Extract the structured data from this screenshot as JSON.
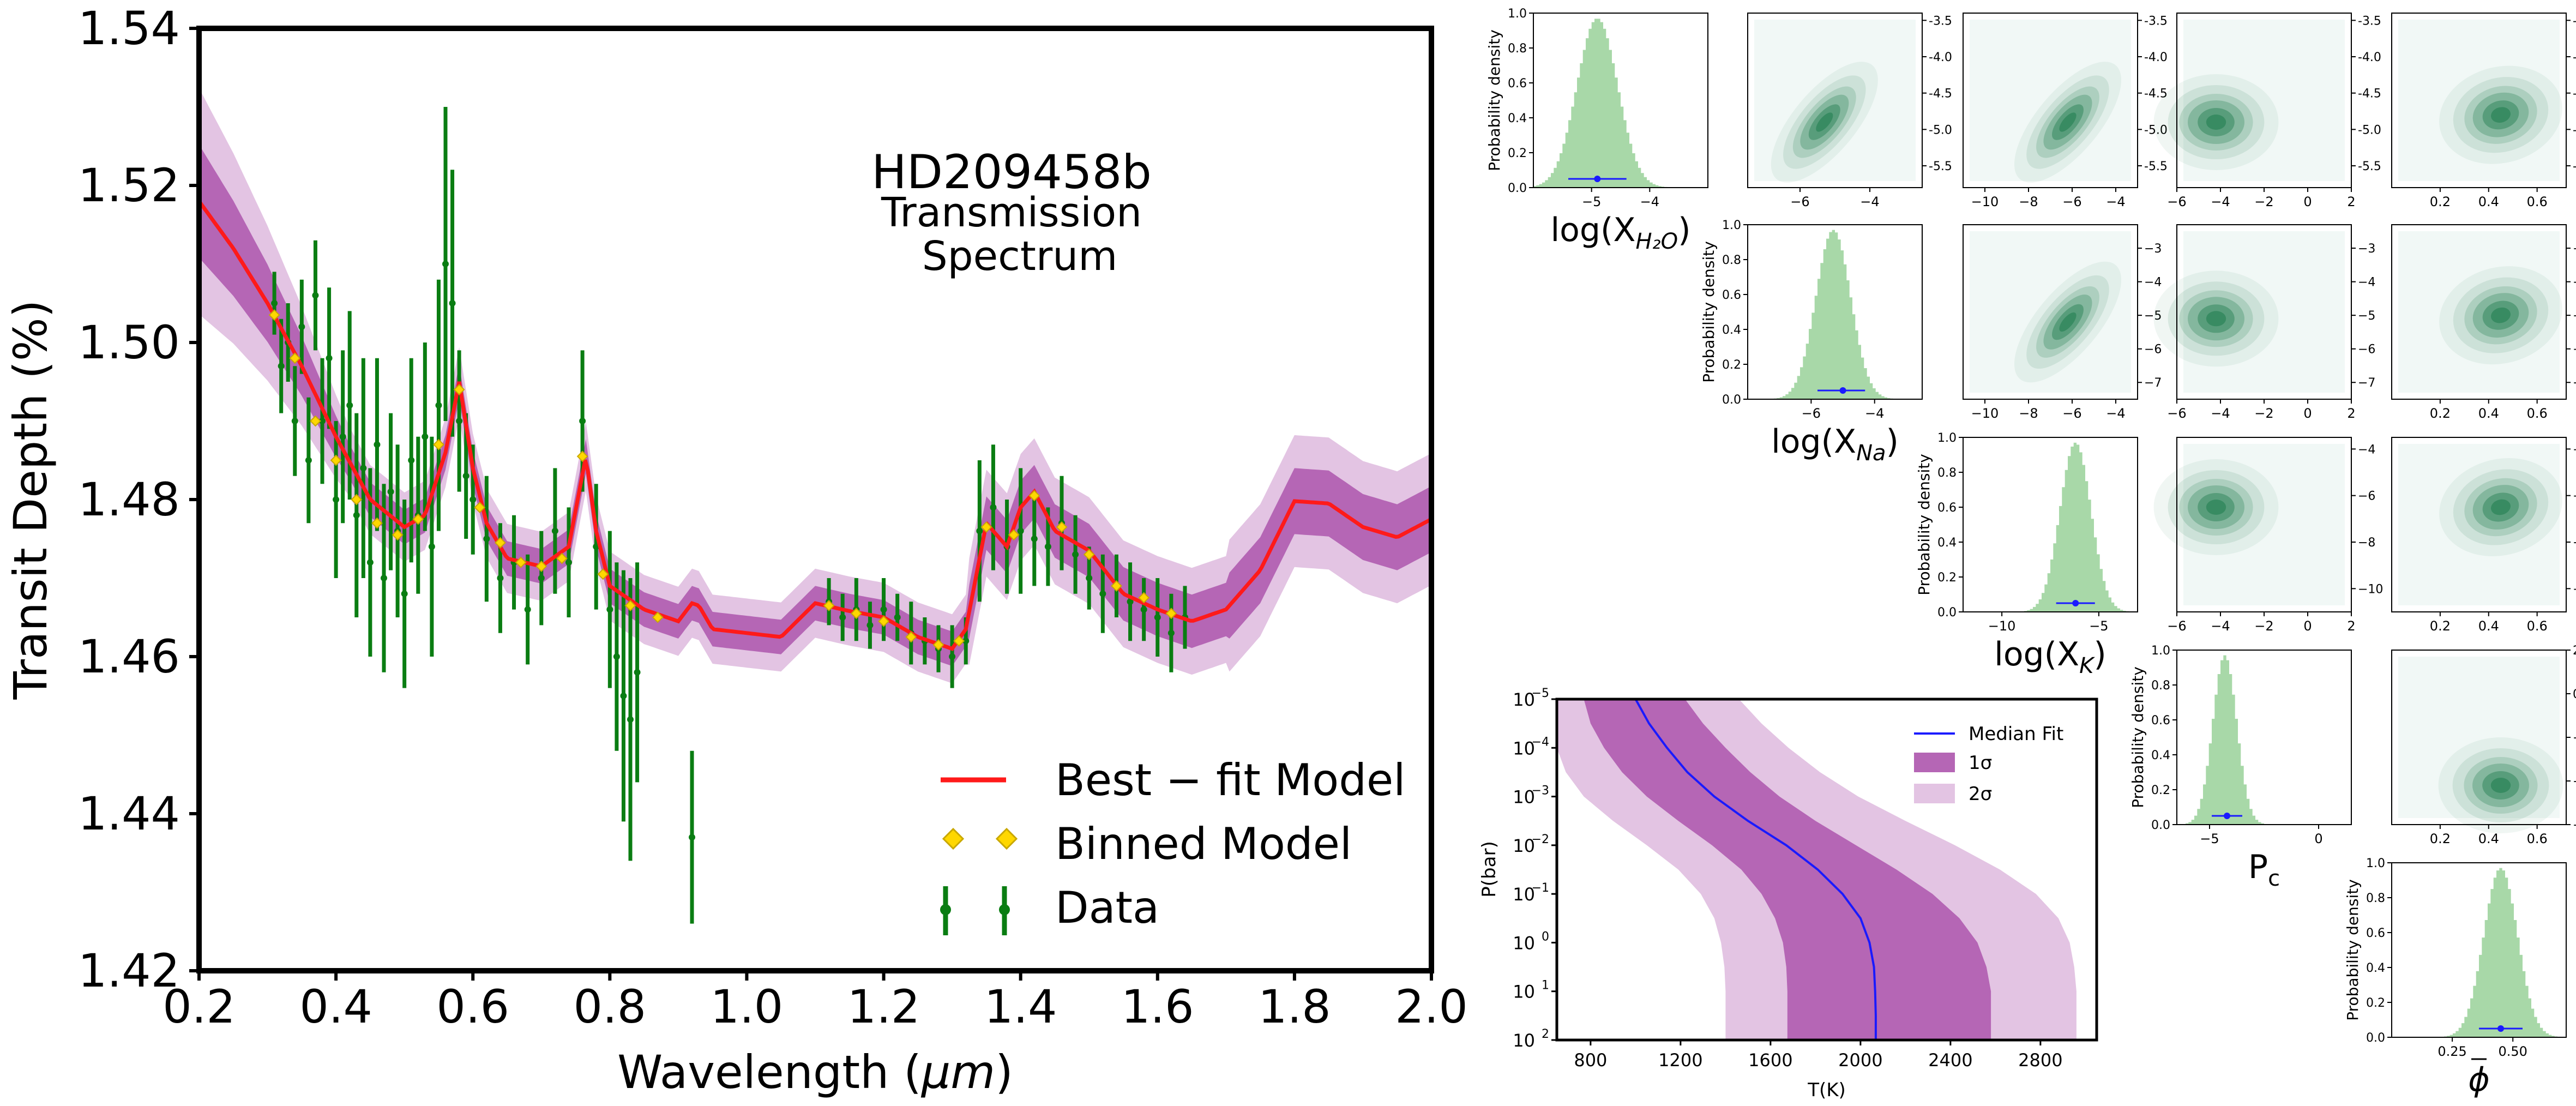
{
  "chart_data": [
    {
      "type": "line",
      "panel": "main-spectrum",
      "title_lines": [
        "HD209458b",
        "Transmission",
        "Spectrum"
      ],
      "xlabel": "Wavelength (μm)",
      "ylabel": "Transit Depth (%)",
      "xlim": [
        0.2,
        2.0
      ],
      "ylim": [
        1.42,
        1.54
      ],
      "xticks": [
        "0.2",
        "0.4",
        "0.6",
        "0.8",
        "1.0",
        "1.2",
        "1.4",
        "1.6",
        "1.8",
        "2.0"
      ],
      "yticks": [
        "1.42",
        "1.44",
        "1.46",
        "1.48",
        "1.50",
        "1.52",
        "1.54"
      ],
      "legend_position": "lower-right",
      "legend": [
        "Best − fit Model",
        "Binned Model",
        "Data"
      ],
      "colors": {
        "model": "#ff1a1a",
        "binned": "#ffd700",
        "data": "#0a7d12",
        "band1": "#b566b5",
        "band2": "#e3c4e3"
      },
      "model": {
        "x": [
          0.2,
          0.25,
          0.3,
          0.35,
          0.4,
          0.45,
          0.5,
          0.53,
          0.56,
          0.58,
          0.6,
          0.62,
          0.65,
          0.7,
          0.74,
          0.765,
          0.78,
          0.8,
          0.85,
          0.9,
          0.92,
          0.93,
          0.95,
          1.0,
          1.05,
          1.1,
          1.15,
          1.2,
          1.25,
          1.3,
          1.32,
          1.35,
          1.38,
          1.4,
          1.42,
          1.45,
          1.5,
          1.55,
          1.6,
          1.65,
          1.7,
          1.75,
          1.8,
          1.85,
          1.9,
          1.95,
          2.0
        ],
        "y": [
          1.518,
          1.512,
          1.505,
          1.497,
          1.488,
          1.48,
          1.4765,
          1.478,
          1.486,
          1.495,
          1.484,
          1.477,
          1.4725,
          1.4715,
          1.474,
          1.4855,
          1.476,
          1.469,
          1.466,
          1.4645,
          1.4668,
          1.4665,
          1.4635,
          1.463,
          1.4625,
          1.4668,
          1.4658,
          1.465,
          1.4625,
          1.461,
          1.4635,
          1.477,
          1.474,
          1.479,
          1.481,
          1.476,
          1.4735,
          1.468,
          1.466,
          1.4645,
          1.466,
          1.471,
          1.4798,
          1.4795,
          1.4765,
          1.4752,
          1.4775
        ]
      },
      "binned_model": {
        "x": [
          0.31,
          0.34,
          0.37,
          0.4,
          0.43,
          0.46,
          0.49,
          0.52,
          0.55,
          0.58,
          0.61,
          0.64,
          0.67,
          0.7,
          0.73,
          0.76,
          0.79,
          0.83,
          0.87,
          1.12,
          1.16,
          1.2,
          1.24,
          1.28,
          1.31,
          1.35,
          1.39,
          1.42,
          1.46,
          1.5,
          1.54,
          1.58,
          1.62
        ],
        "y": [
          1.5035,
          1.498,
          1.49,
          1.485,
          1.48,
          1.477,
          1.4755,
          1.4775,
          1.487,
          1.494,
          1.479,
          1.4745,
          1.472,
          1.4715,
          1.4725,
          1.4855,
          1.4705,
          1.4665,
          1.465,
          1.4665,
          1.4655,
          1.4645,
          1.4625,
          1.4615,
          1.462,
          1.4765,
          1.4755,
          1.4805,
          1.4765,
          1.473,
          1.469,
          1.4675,
          1.4655
        ]
      },
      "data": {
        "x": [
          0.31,
          0.32,
          0.33,
          0.34,
          0.35,
          0.36,
          0.37,
          0.38,
          0.39,
          0.4,
          0.41,
          0.42,
          0.43,
          0.44,
          0.45,
          0.46,
          0.47,
          0.48,
          0.49,
          0.5,
          0.51,
          0.52,
          0.53,
          0.54,
          0.55,
          0.56,
          0.57,
          0.58,
          0.59,
          0.6,
          0.62,
          0.64,
          0.66,
          0.68,
          0.7,
          0.72,
          0.74,
          0.76,
          0.78,
          0.8,
          0.81,
          0.82,
          0.83,
          0.84,
          0.92,
          1.12,
          1.14,
          1.16,
          1.18,
          1.2,
          1.22,
          1.24,
          1.26,
          1.28,
          1.3,
          1.32,
          1.34,
          1.36,
          1.38,
          1.4,
          1.42,
          1.44,
          1.46,
          1.48,
          1.5,
          1.52,
          1.54,
          1.56,
          1.58,
          1.6,
          1.62,
          1.64
        ],
        "y": [
          1.505,
          1.497,
          1.5,
          1.49,
          1.502,
          1.485,
          1.506,
          1.49,
          1.498,
          1.48,
          1.488,
          1.492,
          1.478,
          1.484,
          1.472,
          1.487,
          1.47,
          1.481,
          1.476,
          1.468,
          1.485,
          1.478,
          1.488,
          1.474,
          1.492,
          1.51,
          1.505,
          1.49,
          1.483,
          1.48,
          1.475,
          1.47,
          1.472,
          1.466,
          1.47,
          1.476,
          1.472,
          1.49,
          1.474,
          1.466,
          1.46,
          1.455,
          1.452,
          1.458,
          1.437,
          1.467,
          1.465,
          1.466,
          1.464,
          1.466,
          1.465,
          1.463,
          1.462,
          1.461,
          1.46,
          1.462,
          1.476,
          1.479,
          1.474,
          1.476,
          1.475,
          1.474,
          1.477,
          1.473,
          1.47,
          1.468,
          1.469,
          1.467,
          1.466,
          1.465,
          1.463,
          1.465
        ],
        "err": [
          0.004,
          0.006,
          0.005,
          0.007,
          0.006,
          0.008,
          0.007,
          0.008,
          0.009,
          0.01,
          0.011,
          0.012,
          0.013,
          0.014,
          0.012,
          0.011,
          0.012,
          0.01,
          0.011,
          0.012,
          0.013,
          0.01,
          0.012,
          0.014,
          0.016,
          0.02,
          0.017,
          0.009,
          0.008,
          0.007,
          0.008,
          0.007,
          0.006,
          0.007,
          0.006,
          0.008,
          0.007,
          0.009,
          0.008,
          0.01,
          0.012,
          0.016,
          0.018,
          0.014,
          0.011,
          0.003,
          0.003,
          0.004,
          0.003,
          0.004,
          0.003,
          0.004,
          0.003,
          0.003,
          0.004,
          0.003,
          0.009,
          0.008,
          0.006,
          0.008,
          0.006,
          0.005,
          0.006,
          0.005,
          0.004,
          0.005,
          0.004,
          0.005,
          0.004,
          0.005,
          0.005,
          0.004
        ]
      }
    },
    {
      "type": "corner",
      "panel": "posterior-corner",
      "parameters": [
        "log(X_H2O)",
        "log(X_Na)",
        "log(X_K)",
        "P_c",
        "phi_bar"
      ],
      "diagonal_labels": [
        "log(X",
        "log(X",
        "log(X",
        "P",
        ""
      ],
      "diagonal_ylabel": "Probability density",
      "colors": {
        "hist": "#a8d8a8",
        "marker": "#1a1aff",
        "density": "#1a7a4a"
      },
      "histograms": [
        {
          "xlim": [
            -6,
            -3
          ],
          "ylim": [
            0,
            1.0
          ],
          "peak": -4.9,
          "width": 0.35,
          "median": -4.9,
          "ci": [
            -5.4,
            -4.4
          ],
          "xticks": [
            "−5",
            "−4"
          ],
          "yticks": [
            "0.0",
            "0.2",
            "0.4",
            "0.6",
            "0.8",
            "1.0"
          ]
        },
        {
          "xlim": [
            -8,
            -2.5
          ],
          "ylim": [
            0,
            1.0
          ],
          "peak": -5.3,
          "width": 0.55,
          "median": -5.0,
          "ci": [
            -5.8,
            -4.3
          ],
          "xticks": [
            "−6",
            "−4"
          ],
          "yticks": [
            "0.0",
            "0.2",
            "0.4",
            "0.6",
            "0.8",
            "1.0"
          ]
        },
        {
          "xlim": [
            -12,
            -3
          ],
          "ylim": [
            0,
            1.0
          ],
          "peak": -6.2,
          "width": 0.8,
          "median": -6.2,
          "ci": [
            -7.2,
            -5.2
          ],
          "xticks": [
            "−10",
            "−5"
          ],
          "yticks": [
            "0.0",
            "0.2",
            "0.4",
            "0.6",
            "0.8",
            "1.0"
          ]
        },
        {
          "xlim": [
            -6.5,
            1.5
          ],
          "ylim": [
            0,
            1.0
          ],
          "peak": -4.3,
          "width": 0.55,
          "median": -4.2,
          "ci": [
            -4.9,
            -3.5
          ],
          "xticks": [
            "−5",
            "0"
          ],
          "yticks": [
            "0.0",
            "0.2",
            "0.4",
            "0.6",
            "0.8",
            "1.0"
          ]
        },
        {
          "xlim": [
            0.0,
            0.72
          ],
          "ylim": [
            0,
            1.0
          ],
          "peak": 0.45,
          "width": 0.07,
          "median": 0.45,
          "ci": [
            0.36,
            0.54
          ],
          "xticks": [
            "0.25",
            "0.50"
          ],
          "yticks": [
            "0.0",
            "0.2",
            "0.4",
            "0.6",
            "0.8",
            "1.0"
          ]
        }
      ],
      "pair_panels": [
        {
          "row": 0,
          "col": 1,
          "xlim": [
            -7.5,
            -2.5
          ],
          "ylim": [
            -5.8,
            -3.4
          ],
          "cx": -5.3,
          "cy": -4.9,
          "xticks": [
            "−6",
            "−4"
          ],
          "yticks": [
            "-3.5",
            "-4.0",
            "-4.5",
            "-5.0",
            "-5.5"
          ]
        },
        {
          "row": 0,
          "col": 2,
          "xlim": [
            -11,
            -3
          ],
          "ylim": [
            -5.8,
            -3.4
          ],
          "cx": -6.2,
          "cy": -4.9,
          "xticks": [
            "−10",
            "−8",
            "−6",
            "−4"
          ],
          "yticks": [
            "-3.5",
            "-4.0",
            "-4.5",
            "-5.0",
            "-5.5"
          ]
        },
        {
          "row": 0,
          "col": 3,
          "xlim": [
            -6,
            2
          ],
          "ylim": [
            -5.8,
            -3.4
          ],
          "cx": -4.2,
          "cy": -4.9,
          "xticks": [
            "−6",
            "−4",
            "−2",
            "0",
            "2"
          ],
          "yticks": [
            "-3.5",
            "-4.0",
            "-4.5",
            "-5.0",
            "-5.5"
          ]
        },
        {
          "row": 0,
          "col": 4,
          "xlim": [
            0.0,
            0.72
          ],
          "ylim": [
            -5.8,
            -3.4
          ],
          "cx": 0.45,
          "cy": -4.8,
          "xticks": [
            "0.2",
            "0.4",
            "0.6"
          ],
          "yticks": [
            "-3.5",
            "-4.0",
            "-4.5",
            "-5.0",
            "-5.5"
          ]
        },
        {
          "row": 1,
          "col": 2,
          "xlim": [
            -11,
            -3
          ],
          "ylim": [
            -7.5,
            -2.3
          ],
          "cx": -6.2,
          "cy": -5.2,
          "xticks": [
            "−10",
            "−8",
            "−6",
            "−4"
          ],
          "yticks": [
            "−3",
            "−4",
            "−5",
            "−6",
            "−7"
          ]
        },
        {
          "row": 1,
          "col": 3,
          "xlim": [
            -6,
            2
          ],
          "ylim": [
            -7.5,
            -2.3
          ],
          "cx": -4.2,
          "cy": -5.1,
          "xticks": [
            "−6",
            "−4",
            "−2",
            "0",
            "2"
          ],
          "yticks": [
            "−3",
            "−4",
            "−5",
            "−6",
            "−7"
          ]
        },
        {
          "row": 1,
          "col": 4,
          "xlim": [
            0.0,
            0.72
          ],
          "ylim": [
            -7.5,
            -2.3
          ],
          "cx": 0.45,
          "cy": -5.0,
          "xticks": [
            "0.2",
            "0.4",
            "0.6"
          ],
          "yticks": [
            "−3",
            "−4",
            "−5",
            "−6",
            "−7"
          ]
        },
        {
          "row": 2,
          "col": 3,
          "xlim": [
            -6,
            2
          ],
          "ylim": [
            -11,
            -3.5
          ],
          "cx": -4.2,
          "cy": -6.5,
          "xticks": [
            "−6",
            "−4",
            "−2",
            "0",
            "2"
          ],
          "yticks": [
            "−4",
            "−6",
            "−8",
            "−10"
          ]
        },
        {
          "row": 2,
          "col": 4,
          "xlim": [
            0.0,
            0.72
          ],
          "ylim": [
            -11,
            -3.5
          ],
          "cx": 0.45,
          "cy": -6.5,
          "xticks": [
            "0.2",
            "0.4",
            "0.6"
          ],
          "yticks": [
            "−4",
            "−6",
            "−8",
            "−10"
          ]
        },
        {
          "row": 3,
          "col": 4,
          "xlim": [
            0.0,
            0.72
          ],
          "ylim": [
            -6,
            2
          ],
          "cx": 0.45,
          "cy": -4.2,
          "xticks": [
            "0.2",
            "0.4",
            "0.6"
          ],
          "yticks": [
            "2",
            "0",
            "−2",
            "−4",
            "−6"
          ]
        }
      ]
    },
    {
      "type": "area",
      "panel": "pt-profile",
      "xlabel": "T(K)",
      "ylabel": "P(bar)",
      "xlim": [
        650,
        3050
      ],
      "log_y": true,
      "y_inverted": true,
      "xticks": [
        "800",
        "1200",
        "1600",
        "2000",
        "2400",
        "2800"
      ],
      "ytick_base": "10",
      "ytick_exponents": [
        "−5",
        "−4",
        "−3",
        "−2",
        "−1",
        "0",
        "1",
        "2"
      ],
      "legend_position": "top-right",
      "legend": [
        "Median Fit",
        "1σ",
        "2σ"
      ],
      "colors": {
        "median": "#1a1aff",
        "one_sigma": "#b566b5",
        "two_sigma": "#e3c4e3"
      },
      "logP": [
        -5,
        -4.5,
        -4,
        -3.5,
        -3,
        -2.5,
        -2,
        -1.5,
        -1,
        -0.5,
        0,
        0.5,
        1,
        1.5,
        2
      ],
      "median_T": [
        1000,
        1060,
        1140,
        1230,
        1350,
        1500,
        1670,
        1810,
        1920,
        2000,
        2040,
        2060,
        2065,
        2068,
        2068
      ],
      "one_sigma_low": [
        770,
        800,
        860,
        940,
        1050,
        1190,
        1340,
        1470,
        1560,
        1620,
        1655,
        1670,
        1675,
        1675,
        1675
      ],
      "one_sigma_high": [
        1220,
        1300,
        1400,
        1510,
        1640,
        1800,
        1980,
        2160,
        2320,
        2440,
        2520,
        2560,
        2580,
        2580,
        2580
      ],
      "two_sigma_low": [
        650,
        650,
        650,
        690,
        770,
        900,
        1050,
        1190,
        1290,
        1350,
        1380,
        1395,
        1400,
        1400,
        1400
      ],
      "two_sigma_high": [
        1460,
        1560,
        1680,
        1820,
        1990,
        2200,
        2420,
        2620,
        2780,
        2880,
        2930,
        2950,
        2960,
        2960,
        2960
      ]
    }
  ]
}
